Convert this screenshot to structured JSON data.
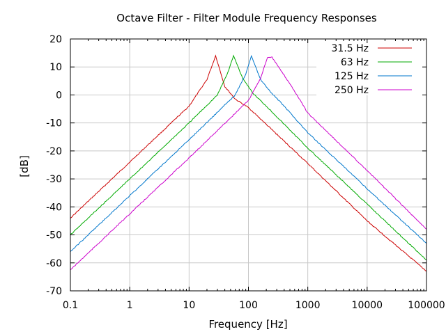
{
  "chart_data": {
    "type": "line",
    "title": "Octave Filter - Filter Module Frequency Responses",
    "xlabel": "Frequency [Hz]",
    "ylabel": "[dB]",
    "xscale": "log",
    "xlim": [
      0.1,
      100000
    ],
    "ylim": [
      -70,
      20
    ],
    "xticks": [
      0.1,
      1,
      10,
      100,
      1000,
      10000,
      100000
    ],
    "xtick_labels": [
      "0.1",
      "1",
      "10",
      "100",
      "1000",
      "10000",
      "100000"
    ],
    "yticks": [
      20,
      10,
      0,
      -10,
      -20,
      -30,
      -40,
      -50,
      -60,
      -70
    ],
    "ytick_labels": [
      "20",
      "10",
      "0",
      "-10",
      "-20",
      "-30",
      "-40",
      "-50",
      "-60",
      "-70"
    ],
    "grid": true,
    "legend": "top-right",
    "series": [
      {
        "name": "31.5 Hz",
        "color": "#cc0000",
        "x": [
          0.1,
          1,
          10,
          20,
          28,
          40,
          60,
          100,
          1000,
          10000,
          100000
        ],
        "y": [
          -44,
          -24,
          -4,
          5.5,
          14,
          3,
          -1.5,
          -4.5,
          -24.5,
          -45,
          -63
        ]
      },
      {
        "name": "63 Hz",
        "color": "#00aa00",
        "x": [
          0.1,
          1,
          10,
          30,
          45,
          56,
          80,
          120,
          200,
          1000,
          10000,
          100000
        ],
        "y": [
          -50,
          -30,
          -10,
          0,
          8,
          14,
          6,
          0.5,
          -4,
          -19,
          -39,
          -59
        ]
      },
      {
        "name": "125 Hz",
        "color": "#0077cc",
        "x": [
          0.1,
          1,
          10,
          60,
          90,
          112,
          160,
          250,
          400,
          1000,
          10000,
          100000
        ],
        "y": [
          -56,
          -36,
          -16,
          0,
          7.5,
          14,
          5.5,
          0.5,
          -4,
          -13.5,
          -33.5,
          -53
        ]
      },
      {
        "name": "250 Hz",
        "color": "#cc00cc",
        "x": [
          0.1,
          1,
          10,
          100,
          160,
          210,
          250,
          320,
          500,
          800,
          1000,
          10000,
          100000
        ],
        "y": [
          -62.5,
          -42.5,
          -22.5,
          -2,
          6,
          13.5,
          13.5,
          10,
          4,
          -3,
          -6.5,
          -27,
          -48
        ]
      }
    ]
  }
}
